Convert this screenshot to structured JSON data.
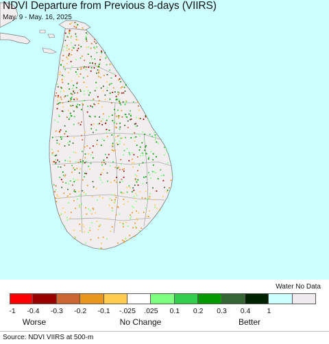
{
  "title": "NDVI Departure from Previous 8-days (VIIRS)",
  "subtitle": "May. 9 - May. 16, 2025",
  "colors": {
    "water": "#ccffff",
    "land": "#f2eef0",
    "border": "#777777"
  },
  "legend": {
    "water_no_data_label": "Water No Data",
    "swatches": [
      {
        "color": "#ff0000"
      },
      {
        "color": "#990000"
      },
      {
        "color": "#cc6633"
      },
      {
        "color": "#e8961e"
      },
      {
        "color": "#ffcc4d"
      },
      {
        "color": "#ffffff"
      },
      {
        "color": "#80ff80"
      },
      {
        "color": "#33cc4d"
      },
      {
        "color": "#009900"
      },
      {
        "color": "#336633"
      },
      {
        "color": "#002200"
      },
      {
        "color": "#ccffff"
      },
      {
        "color": "#eeeaee"
      }
    ],
    "ticks": [
      "-1",
      "-0.4",
      "-0.3",
      "-0.2",
      "-0.1",
      "-.025",
      ".025",
      "0.1",
      "0.2",
      "0.3",
      "0.4",
      "1"
    ],
    "categories": {
      "worse": "Worse",
      "no_change": "No Change",
      "better": "Better"
    }
  },
  "source": "Source: NDVI VIIRS at 500-m"
}
